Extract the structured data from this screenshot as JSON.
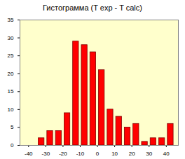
{
  "chart_data": {
    "type": "histogram",
    "title": "Гистограмма (T exp - T calc)",
    "bins": [
      -35,
      -30,
      -25,
      -20,
      -15,
      -10,
      -5,
      0,
      5,
      10,
      15,
      20,
      25,
      30,
      35,
      40,
      45
    ],
    "values": [
      2,
      4,
      4,
      9,
      29,
      28,
      26,
      21,
      10,
      8,
      5,
      6,
      1,
      2,
      2,
      6
    ],
    "color": "#ff0000",
    "xlim": [
      -45,
      47
    ],
    "xticks": [
      -40,
      -30,
      -20,
      -10,
      0,
      10,
      20,
      30,
      40
    ],
    "ylim": [
      0,
      35
    ],
    "yticks": [
      0,
      5,
      10,
      15,
      20,
      25,
      30,
      35
    ],
    "grid": false
  }
}
